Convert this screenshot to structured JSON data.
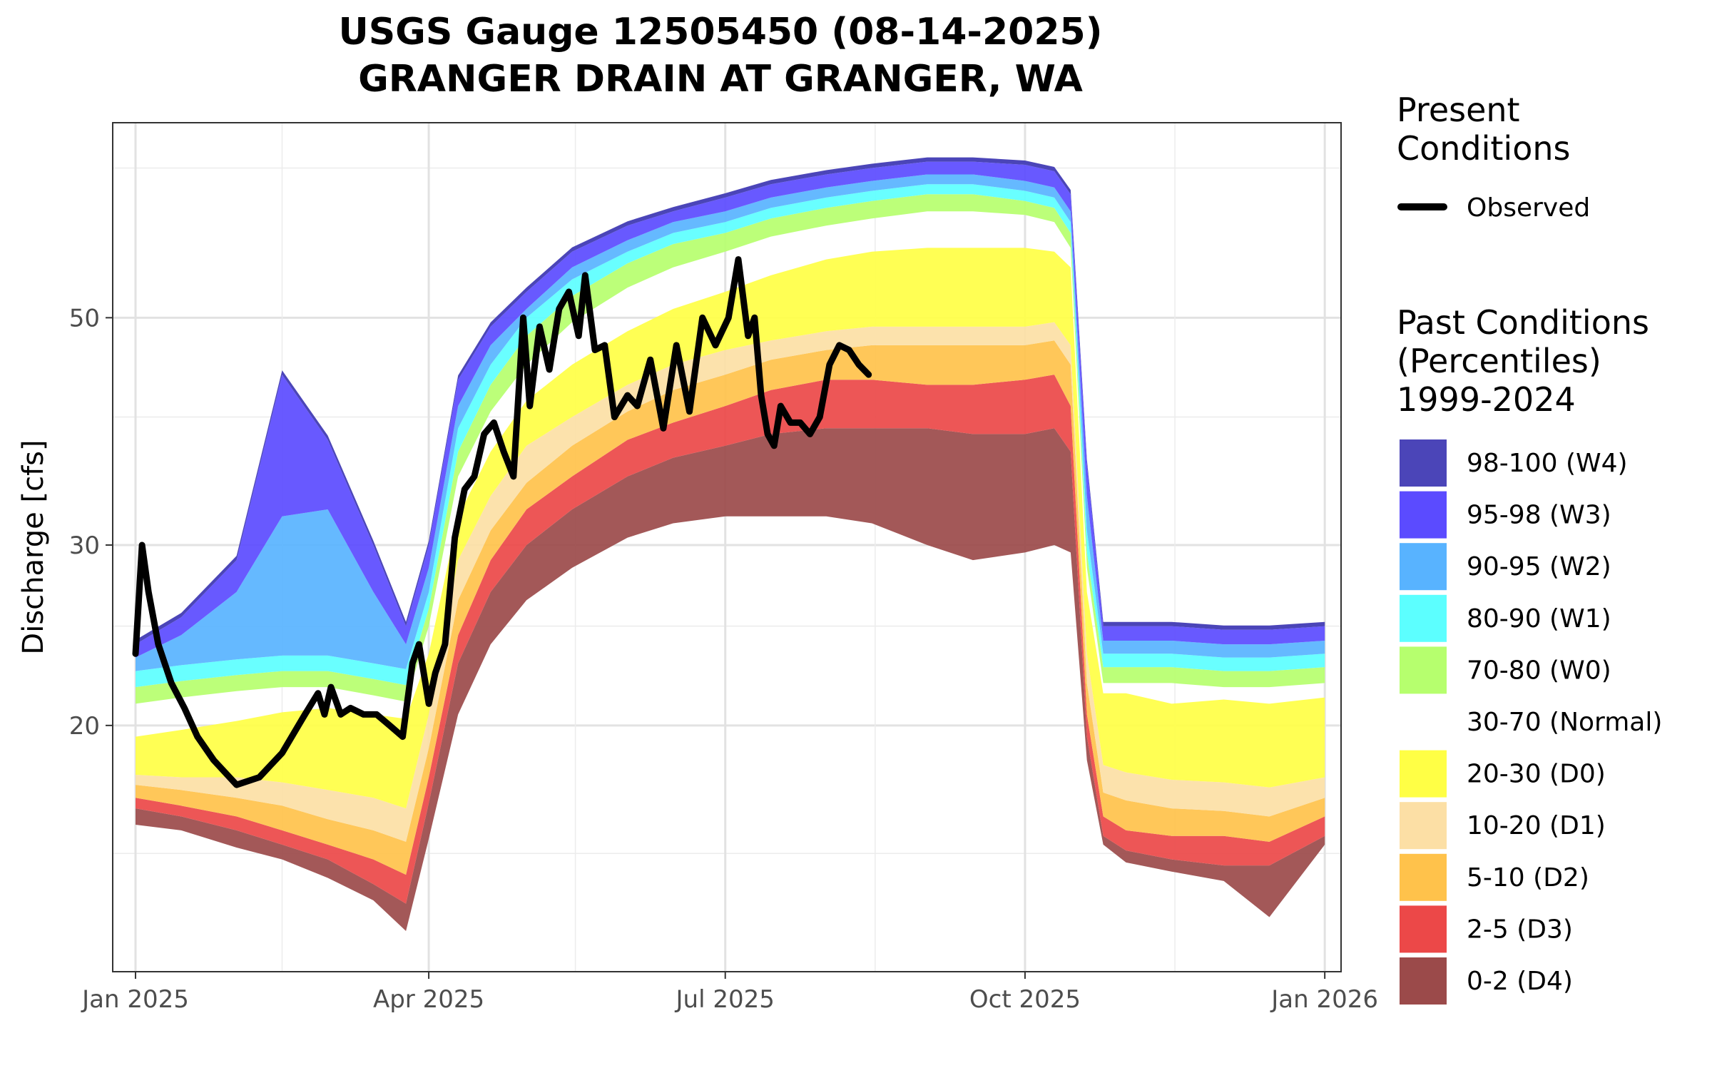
{
  "chart_data": {
    "type": "area",
    "title_line1": "USGS Gauge 12505450 (08-14-2025)",
    "title_line2": "GRANGER DRAIN AT GRANGER, WA",
    "xlabel": "",
    "ylabel": "Discharge [cfs]",
    "y_scale": "log",
    "ylim": [
      11.5,
      77.5
    ],
    "y_ticks": [
      20,
      30,
      50
    ],
    "xlim": [
      "2024-12-25",
      "2026-01-06"
    ],
    "x_ticks": [
      {
        "date": "2025-01-01",
        "label": "Jan 2025"
      },
      {
        "date": "2025-04-01",
        "label": "Apr 2025"
      },
      {
        "date": "2025-07-01",
        "label": "Jul 2025"
      },
      {
        "date": "2025-10-01",
        "label": "Oct 2025"
      },
      {
        "date": "2026-01-01",
        "label": "Jan 2026"
      }
    ],
    "grid": true,
    "legend_placement": "right",
    "legend": {
      "present_title": [
        "Present",
        "Conditions"
      ],
      "observed_label": "Observed",
      "past_title": [
        "Past Conditions",
        "(Percentiles)",
        "1999-2024"
      ],
      "entries": [
        {
          "label": "98-100 (W4)",
          "color": "#4B45B8"
        },
        {
          "label": "95-98 (W3)",
          "color": "#5B4BFF"
        },
        {
          "label": "90-95 (W2)",
          "color": "#58B3FF"
        },
        {
          "label": "80-90 (W1)",
          "color": "#5CFFFF"
        },
        {
          "label": "70-80 (W0)",
          "color": "#B6FF6E"
        },
        {
          "label": "30-70 (Normal)",
          "color": "#FFFFFF"
        },
        {
          "label": "20-30 (D0)",
          "color": "#FFFF45"
        },
        {
          "label": "10-20 (D1)",
          "color": "#FCDFA5"
        },
        {
          "label": "5-10 (D2)",
          "color": "#FFC24B"
        },
        {
          "label": "2-5 (D3)",
          "color": "#EC4848"
        },
        {
          "label": "0-2 (D4)",
          "color": "#9B4A4A"
        }
      ]
    },
    "bands": {
      "dates": [
        "2025-01-01",
        "2025-01-15",
        "2025-02-01",
        "2025-02-15",
        "2025-03-01",
        "2025-03-15",
        "2025-03-25",
        "2025-04-01",
        "2025-04-10",
        "2025-04-20",
        "2025-05-01",
        "2025-05-15",
        "2025-06-01",
        "2025-06-15",
        "2025-07-01",
        "2025-07-15",
        "2025-08-01",
        "2025-08-15",
        "2025-09-01",
        "2025-09-15",
        "2025-10-01",
        "2025-10-10",
        "2025-10-15",
        "2025-10-20",
        "2025-10-25",
        "2025-11-01",
        "2025-11-15",
        "2025-12-01",
        "2025-12-15",
        "2026-01-01"
      ],
      "lower_bound": [
        16.0,
        15.8,
        15.2,
        14.8,
        14.2,
        13.5,
        12.6,
        15.5,
        20.5,
        24.0,
        26.5,
        28.5,
        30.5,
        31.5,
        32.0,
        32.0,
        32.0,
        31.5,
        30.0,
        29.0,
        29.5,
        30.0,
        29.5,
        18.5,
        15.3,
        14.7,
        14.4,
        14.1,
        13.0,
        15.3
      ],
      "p2": [
        16.6,
        16.3,
        15.8,
        15.3,
        14.8,
        14.0,
        13.4,
        16.8,
        23.0,
        27.0,
        30.0,
        32.5,
        35.0,
        36.5,
        37.5,
        38.5,
        39.0,
        39.0,
        39.0,
        38.5,
        38.5,
        39.0,
        37.0,
        19.5,
        15.6,
        15.1,
        14.8,
        14.6,
        14.6,
        15.6
      ],
      "p5": [
        17.0,
        16.7,
        16.3,
        15.8,
        15.3,
        14.8,
        14.3,
        17.8,
        24.5,
        29.0,
        32.5,
        35.0,
        38.0,
        39.5,
        41.0,
        42.5,
        43.5,
        43.5,
        43.0,
        43.0,
        43.5,
        44.0,
        41.0,
        20.5,
        16.3,
        15.8,
        15.6,
        15.6,
        15.4,
        16.3
      ],
      "p10": [
        17.5,
        17.3,
        17.0,
        16.7,
        16.2,
        15.8,
        15.4,
        19.0,
        26.5,
        31.0,
        34.5,
        37.5,
        40.5,
        42.5,
        44.0,
        45.5,
        46.5,
        47.0,
        47.0,
        47.0,
        47.0,
        47.5,
        45.0,
        22.0,
        17.2,
        16.9,
        16.6,
        16.5,
        16.3,
        17.0
      ],
      "p20": [
        17.9,
        17.8,
        17.8,
        17.6,
        17.3,
        17.0,
        16.6,
        20.5,
        29.0,
        33.5,
        37.5,
        40.0,
        43.0,
        45.0,
        46.5,
        47.5,
        48.5,
        49.0,
        49.0,
        49.0,
        49.0,
        49.5,
        47.0,
        23.5,
        18.3,
        18.0,
        17.7,
        17.6,
        17.4,
        17.8
      ],
      "p30": [
        19.5,
        19.8,
        20.2,
        20.6,
        20.8,
        20.5,
        20.3,
        23.5,
        32.0,
        37.0,
        41.5,
        45.0,
        48.5,
        51.0,
        53.0,
        55.0,
        57.0,
        58.0,
        58.5,
        58.5,
        58.5,
        58.0,
        56.0,
        27.0,
        21.5,
        21.5,
        21.0,
        21.2,
        21.0,
        21.3
      ],
      "p70": [
        21.0,
        21.3,
        21.6,
        21.8,
        21.8,
        21.4,
        21.1,
        25.0,
        35.0,
        40.5,
        45.0,
        49.5,
        53.5,
        56.0,
        58.0,
        60.0,
        61.5,
        62.5,
        63.5,
        63.5,
        63.0,
        62.0,
        58.5,
        28.5,
        22.0,
        22.0,
        22.0,
        21.8,
        21.8,
        22.0
      ],
      "p80": [
        21.8,
        22.1,
        22.4,
        22.6,
        22.6,
        22.2,
        21.9,
        26.0,
        37.0,
        43.0,
        48.0,
        52.5,
        56.5,
        59.0,
        60.5,
        62.5,
        64.0,
        65.0,
        66.0,
        66.0,
        65.0,
        64.0,
        60.5,
        29.5,
        22.8,
        22.8,
        22.8,
        22.6,
        22.6,
        22.8
      ],
      "p90": [
        22.6,
        22.9,
        23.2,
        23.4,
        23.4,
        23.0,
        22.7,
        27.0,
        39.0,
        45.0,
        50.0,
        54.5,
        58.0,
        60.5,
        62.0,
        64.0,
        65.5,
        66.5,
        67.5,
        67.5,
        66.5,
        65.5,
        62.0,
        31.0,
        23.5,
        23.5,
        23.5,
        23.3,
        23.3,
        23.5
      ],
      "p95": [
        23.3,
        24.5,
        27.0,
        32.0,
        32.5,
        27.0,
        24.0,
        28.5,
        41.0,
        47.0,
        51.0,
        56.0,
        59.5,
        62.0,
        63.5,
        65.5,
        67.0,
        68.0,
        69.0,
        69.0,
        68.0,
        67.0,
        63.5,
        33.5,
        24.2,
        24.2,
        24.2,
        24.0,
        24.0,
        24.2
      ],
      "upper_bound": [
        24.0,
        25.5,
        29.0,
        44.0,
        38.0,
        30.0,
        25.0,
        30.0,
        43.5,
        49.0,
        53.0,
        58.0,
        61.5,
        63.5,
        65.5,
        67.5,
        69.0,
        70.0,
        71.0,
        71.0,
        70.5,
        69.5,
        66.0,
        36.0,
        25.0,
        25.0,
        25.0,
        24.8,
        24.8,
        25.0
      ]
    },
    "series": [
      {
        "name": "Observed",
        "color": "#000000",
        "x": [
          "2025-01-01",
          "2025-01-03",
          "2025-01-05",
          "2025-01-08",
          "2025-01-12",
          "2025-01-16",
          "2025-01-20",
          "2025-01-25",
          "2025-02-01",
          "2025-02-08",
          "2025-02-15",
          "2025-02-22",
          "2025-02-26",
          "2025-02-28",
          "2025-03-02",
          "2025-03-05",
          "2025-03-08",
          "2025-03-12",
          "2025-03-16",
          "2025-03-20",
          "2025-03-24",
          "2025-03-27",
          "2025-03-29",
          "2025-04-01",
          "2025-04-03",
          "2025-04-06",
          "2025-04-09",
          "2025-04-12",
          "2025-04-15",
          "2025-04-18",
          "2025-04-21",
          "2025-04-24",
          "2025-04-27",
          "2025-04-30",
          "2025-05-02",
          "2025-05-05",
          "2025-05-08",
          "2025-05-11",
          "2025-05-14",
          "2025-05-17",
          "2025-05-19",
          "2025-05-22",
          "2025-05-25",
          "2025-05-28",
          "2025-06-01",
          "2025-06-04",
          "2025-06-08",
          "2025-06-12",
          "2025-06-16",
          "2025-06-20",
          "2025-06-24",
          "2025-06-28",
          "2025-07-02",
          "2025-07-05",
          "2025-07-08",
          "2025-07-10",
          "2025-07-12",
          "2025-07-14",
          "2025-07-16",
          "2025-07-18",
          "2025-07-21",
          "2025-07-24",
          "2025-07-27",
          "2025-07-30",
          "2025-08-02",
          "2025-08-05",
          "2025-08-08",
          "2025-08-11",
          "2025-08-14"
        ],
        "y": [
          23.5,
          30.0,
          27.0,
          24.0,
          22.0,
          20.8,
          19.5,
          18.5,
          17.5,
          17.8,
          18.8,
          20.5,
          21.5,
          20.5,
          21.8,
          20.5,
          20.8,
          20.5,
          20.5,
          20.0,
          19.5,
          23.0,
          24.0,
          21.0,
          22.5,
          24.0,
          30.5,
          34.0,
          35.0,
          38.5,
          39.5,
          37.0,
          35.0,
          50.0,
          41.0,
          49.0,
          44.5,
          51.0,
          53.0,
          48.0,
          55.0,
          46.5,
          47.0,
          40.0,
          42.0,
          41.0,
          45.5,
          39.0,
          47.0,
          40.5,
          50.0,
          47.0,
          50.0,
          57.0,
          48.0,
          50.0,
          42.0,
          38.5,
          37.5,
          41.0,
          39.5,
          39.5,
          38.5,
          40.0,
          45.0,
          47.0,
          46.5,
          45.0,
          44.0
        ]
      }
    ]
  }
}
